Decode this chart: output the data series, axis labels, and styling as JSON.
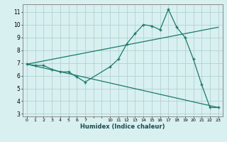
{
  "background_color": "#d8f0f0",
  "grid_color": "#aacccc",
  "line_color": "#1a7a6a",
  "xlabel": "Humidex (Indice chaleur)",
  "xlim": [
    -0.5,
    23.5
  ],
  "ylim": [
    2.8,
    11.6
  ],
  "yticks": [
    3,
    4,
    5,
    6,
    7,
    8,
    9,
    10,
    11
  ],
  "xtick_labels": [
    "0",
    "1",
    "2",
    "3",
    "4",
    "5",
    "6",
    "7",
    "",
    "",
    "10",
    "11",
    "12",
    "13",
    "14",
    "15",
    "16",
    "17",
    "18",
    "19",
    "20",
    "21",
    "22",
    "23"
  ],
  "series1_x": [
    0,
    1,
    2,
    3,
    4,
    5,
    6,
    7,
    10,
    11,
    12,
    13,
    14,
    15,
    16,
    17,
    18,
    19,
    20,
    21,
    22,
    23
  ],
  "series1_y": [
    6.9,
    6.8,
    6.8,
    6.5,
    6.3,
    6.3,
    5.9,
    5.5,
    6.7,
    7.3,
    8.5,
    9.3,
    10.0,
    9.9,
    9.6,
    11.2,
    9.8,
    9.0,
    7.3,
    5.3,
    3.5,
    3.5
  ],
  "series2_x": [
    0,
    23
  ],
  "series2_y": [
    6.9,
    9.8
  ],
  "series3_x": [
    0,
    23
  ],
  "series3_y": [
    6.9,
    3.5
  ]
}
